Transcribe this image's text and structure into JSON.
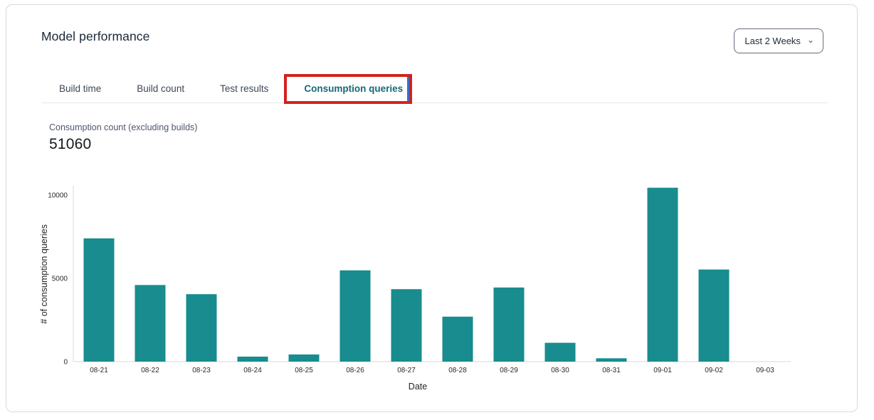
{
  "header": {
    "title": "Model performance",
    "time_range": {
      "value": "Last 2 Weeks",
      "chevron": "⌄"
    }
  },
  "tabs": {
    "items": [
      {
        "id": "build-time",
        "label": "Build time",
        "active": false
      },
      {
        "id": "build-count",
        "label": "Build count",
        "active": false
      },
      {
        "id": "test-results",
        "label": "Test results",
        "active": false
      },
      {
        "id": "consumption-queries",
        "label": "Consumption queries",
        "active": true
      }
    ]
  },
  "annotation": {
    "target": "Consumption queries tab",
    "highlight_color": "#d2231c",
    "focus_edge_color": "#3a6ec9"
  },
  "metric": {
    "label": "Consumption count (excluding builds)",
    "value": "51060"
  },
  "chart_data": {
    "type": "bar",
    "categories": [
      "08-21",
      "08-22",
      "08-23",
      "08-24",
      "08-25",
      "08-26",
      "08-27",
      "08-28",
      "08-29",
      "08-30",
      "08-31",
      "09-01",
      "09-02",
      "09-03"
    ],
    "values": [
      7400,
      4600,
      4050,
      300,
      430,
      5480,
      4350,
      2700,
      4450,
      1130,
      200,
      10440,
      5530,
      0
    ],
    "title": "",
    "xlabel": "Date",
    "ylabel": "# of consumption queries",
    "yticks": [
      0,
      5000,
      10000
    ],
    "ylim": [
      0,
      10700
    ],
    "grid": false,
    "legend": false,
    "bar_color": "#188c8e",
    "axis_color": "#d7dadd",
    "tick_color": "#25292e"
  }
}
